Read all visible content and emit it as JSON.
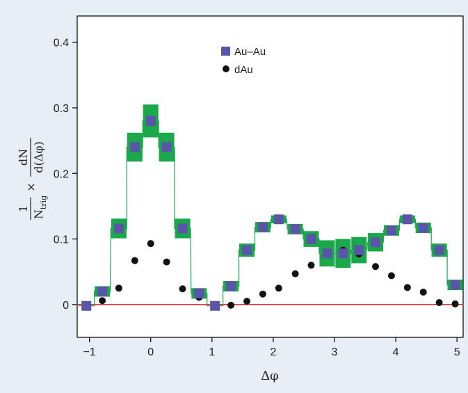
{
  "chart_data": {
    "type": "scatter",
    "xlabel": "Δφ",
    "ylabel": {
      "numerator_left": "1",
      "denominator_left": "N",
      "denominator_left_sub": "trig",
      "times": "×",
      "numerator_right": "dN",
      "denominator_right": "d(Δφ)"
    },
    "xlim": [
      -1.2,
      5.1
    ],
    "ylim": [
      -0.05,
      0.44
    ],
    "xticks": [
      "−1",
      "0",
      "1",
      "2",
      "3",
      "4",
      "5"
    ],
    "xtick_values": [
      -1,
      0,
      1,
      2,
      3,
      4,
      5
    ],
    "yticks": [
      "0",
      "0.1",
      "0.2",
      "0.3",
      "0.4"
    ],
    "ytick_values": [
      0,
      0.1,
      0.2,
      0.3,
      0.4
    ],
    "grid": false,
    "legend_position": "top-center",
    "reference_line": {
      "y": 0,
      "color": "#d9363e"
    },
    "series": [
      {
        "name": "Au–Au",
        "marker": "square",
        "color": "#5a55aa",
        "band_color": "#1aa84a",
        "x": [
          -1.05,
          -0.79,
          -0.52,
          -0.26,
          0.0,
          0.26,
          0.52,
          0.79,
          1.05,
          1.31,
          1.57,
          1.83,
          2.09,
          2.36,
          2.62,
          2.88,
          3.14,
          3.4,
          3.67,
          3.93,
          4.19,
          4.45,
          4.71,
          4.97
        ],
        "values": [
          -0.002,
          0.02,
          0.116,
          0.24,
          0.28,
          0.24,
          0.116,
          0.017,
          -0.002,
          0.028,
          0.083,
          0.118,
          0.13,
          0.115,
          0.1,
          0.078,
          0.078,
          0.083,
          0.095,
          0.113,
          0.13,
          0.117,
          0.083,
          0.03
        ],
        "band_halfwidth": [
          0.0,
          0.008,
          0.015,
          0.022,
          0.025,
          0.022,
          0.015,
          0.008,
          0.0,
          0.008,
          0.01,
          0.008,
          0.006,
          0.008,
          0.012,
          0.02,
          0.022,
          0.02,
          0.014,
          0.008,
          0.006,
          0.008,
          0.01,
          0.008
        ]
      },
      {
        "name": "dAu",
        "marker": "circle",
        "color": "#111111",
        "x": [
          -0.79,
          -0.52,
          -0.26,
          0.0,
          0.26,
          0.52,
          0.79,
          1.05,
          1.31,
          1.57,
          1.83,
          2.09,
          2.36,
          2.62,
          2.88,
          3.14,
          3.4,
          3.67,
          3.93,
          4.19,
          4.45,
          4.71,
          4.97
        ],
        "values": [
          0.006,
          0.025,
          0.067,
          0.093,
          0.065,
          0.024,
          0.011,
          -0.003,
          -0.001,
          0.005,
          0.016,
          0.025,
          0.047,
          0.06,
          0.076,
          0.083,
          0.077,
          0.058,
          0.044,
          0.026,
          0.019,
          0.003,
          0.001
        ]
      }
    ]
  }
}
